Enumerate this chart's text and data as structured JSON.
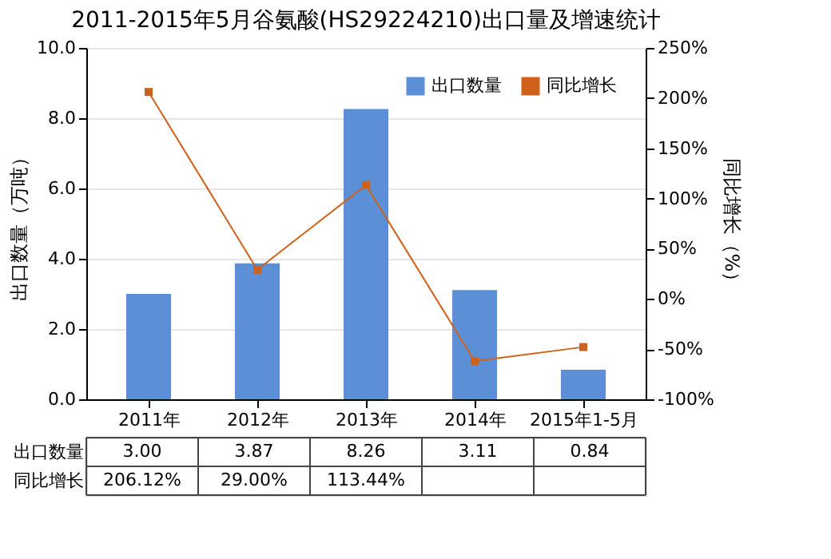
{
  "chart_data": {
    "type": "bar",
    "title": "2011-2015年5月谷氨酸(HS29224210)出口量及增速统计",
    "categories": [
      "2011年",
      "2012年",
      "2013年",
      "2014年",
      "2015年1-5月"
    ],
    "series": [
      {
        "name": "出口数量",
        "color": "#5b8fd6",
        "values": [
          3.0,
          3.87,
          8.26,
          3.11,
          0.84
        ],
        "value_labels": [
          "3.00",
          "3.87",
          "8.26",
          "3.11",
          "0.84"
        ]
      },
      {
        "name": "同比增长",
        "type": "line",
        "axis": "y2",
        "color": "#d0611b",
        "values": [
          206.12,
          29.0,
          113.44,
          -62,
          -48
        ],
        "value_labels": [
          "206.12%",
          "29.00%",
          "113.44%",
          null,
          null
        ]
      }
    ],
    "ylabel": "出口数量（万吨）",
    "y2label": "同比增长（%）",
    "ylim": [
      0,
      10
    ],
    "yticks": [
      {
        "value": 0,
        "label": "0.0"
      },
      {
        "value": 2,
        "label": "2.0"
      },
      {
        "value": 4,
        "label": "4.0"
      },
      {
        "value": 6,
        "label": "6.0"
      },
      {
        "value": 8,
        "label": "8.0"
      },
      {
        "value": 10,
        "label": "10.0"
      }
    ],
    "y2lim": [
      -100,
      250
    ],
    "y2ticks": [
      {
        "value": -100,
        "label": "-100%"
      },
      {
        "value": -50,
        "label": "-50%"
      },
      {
        "value": 0,
        "label": "0%"
      },
      {
        "value": 50,
        "label": "50%"
      },
      {
        "value": 100,
        "label": "100%"
      },
      {
        "value": 150,
        "label": "150%"
      },
      {
        "value": 200,
        "label": "200%"
      },
      {
        "value": 250,
        "label": "250%"
      }
    ],
    "grid": "y",
    "legend": "top right",
    "marker": "square",
    "line_style": "solid"
  }
}
